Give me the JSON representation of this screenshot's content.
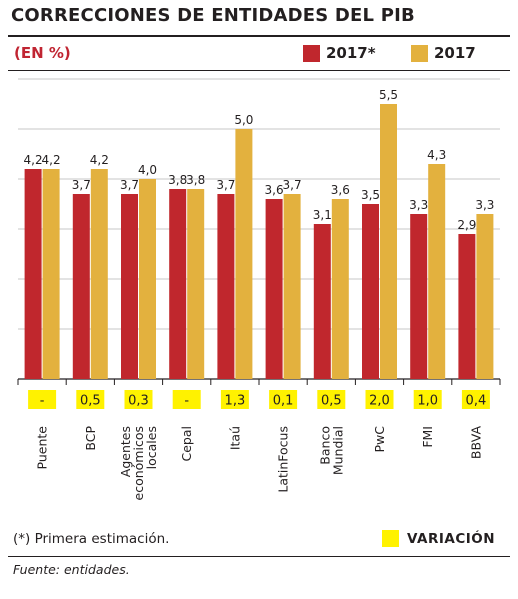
{
  "header": {
    "title": "CORRECCIONES DE ENTIDADES DEL PIB",
    "unit": "(EN %)"
  },
  "colors": {
    "series_a": "#c0272d",
    "series_b": "#e3b13e",
    "variation": "#fff200",
    "grid": "#c7c7c7"
  },
  "chart_data": {
    "type": "bar",
    "title": "CORRECCIONES DE ENTIDADES DEL PIB",
    "unit": "(EN %)",
    "categories": [
      "Puente",
      "BCP",
      "Agentes económicos locales",
      "Cepal",
      "Itaú",
      "LatinFocus",
      "Banco Mundial",
      "PwC",
      "FMI",
      "BBVA"
    ],
    "category_lines": [
      [
        "Puente"
      ],
      [
        "BCP"
      ],
      [
        "Agentes",
        "económicos",
        "locales"
      ],
      [
        "Cepal"
      ],
      [
        "Itaú"
      ],
      [
        "LatinFocus"
      ],
      [
        "Banco",
        "Mundial"
      ],
      [
        "PwC"
      ],
      [
        "FMI"
      ],
      [
        "BBVA"
      ]
    ],
    "series": [
      {
        "name": "2017*",
        "values": [
          4.2,
          3.7,
          3.7,
          3.8,
          3.7,
          3.6,
          3.1,
          3.5,
          3.3,
          2.9
        ],
        "labels": [
          "4,2",
          "3,7",
          "3,7",
          "3,8",
          "3,7",
          "3,6",
          "3,1",
          "3,5",
          "3,3",
          "2,9"
        ]
      },
      {
        "name": "2017",
        "values": [
          4.2,
          4.2,
          4.0,
          3.8,
          5.0,
          3.7,
          3.6,
          5.5,
          4.3,
          3.3
        ],
        "labels": [
          "4,2",
          "4,2",
          "4,0",
          "3,8",
          "5,0",
          "3,7",
          "3,6",
          "5,5",
          "4,3",
          "3,3"
        ]
      }
    ],
    "variation": [
      "-",
      "0,5",
      "0,3",
      "-",
      "1,3",
      "0,1",
      "0,5",
      "2,0",
      "1,0",
      "0,4"
    ],
    "ylim": [
      0,
      6
    ],
    "grid": true,
    "legend_position": "top-right"
  },
  "legend": {
    "series_a_label": "2017*",
    "series_b_label": "2017",
    "variation_label": "VARIACIÓN"
  },
  "footnote": "(*) Primera estimación.",
  "source": "Fuente: entidades."
}
